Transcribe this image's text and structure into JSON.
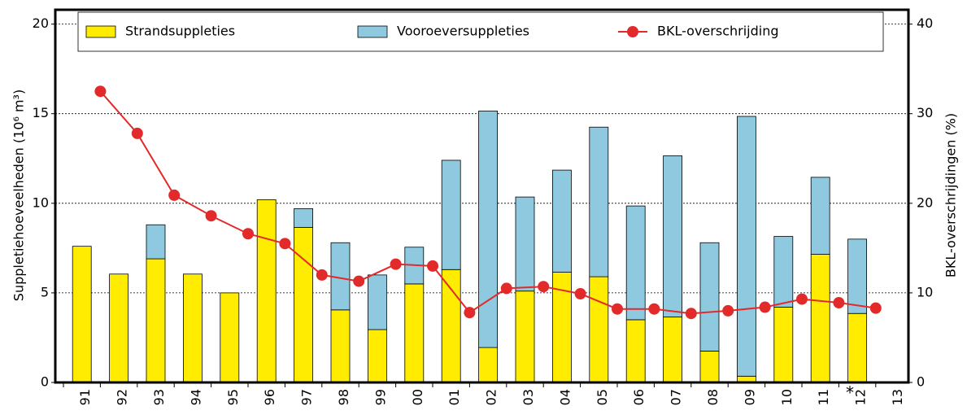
{
  "chart_data": {
    "type": "bar",
    "categories": [
      "91",
      "92",
      "93",
      "94",
      "95",
      "96",
      "97",
      "98",
      "99",
      "00",
      "01",
      "02",
      "03",
      "04",
      "05",
      "06",
      "07",
      "08",
      "09",
      "10",
      "11",
      "12",
      "13"
    ],
    "series": [
      {
        "name": "Strandsuppleties",
        "color": "#ffec00",
        "values": [
          7.6,
          6.05,
          6.9,
          6.05,
          5.0,
          10.2,
          8.65,
          4.05,
          2.95,
          5.5,
          6.3,
          1.95,
          5.1,
          6.15,
          5.9,
          3.5,
          3.65,
          1.75,
          0.35,
          4.2,
          7.15,
          3.85,
          null
        ]
      },
      {
        "name": "Vooroeversuppleties",
        "color": "#8ec9e0",
        "values": [
          0,
          0,
          1.9,
          0,
          0,
          0,
          1.05,
          3.75,
          3.05,
          2.05,
          6.1,
          13.2,
          5.25,
          5.7,
          8.35,
          6.35,
          9.0,
          6.05,
          14.5,
          3.95,
          4.3,
          4.15,
          null
        ]
      },
      {
        "name": "BKL-overschrijding",
        "color": "#e32a2a",
        "type": "line",
        "axis": "y2",
        "values": [
          null,
          32.5,
          27.8,
          20.9,
          18.6,
          16.6,
          15.5,
          12.0,
          11.3,
          13.2,
          13.0,
          7.8,
          10.5,
          10.7,
          9.9,
          8.2,
          8.2,
          7.7,
          8.0,
          8.4,
          9.3,
          8.9,
          8.3
        ]
      }
    ],
    "ylabel": "Suppletiehoeveelheden (10⁶ m³)",
    "y2label": "BKL-overschrijdingen (%)",
    "annotation": "*",
    "ylim": [
      0,
      20.8
    ],
    "yticks": [
      0,
      5,
      10,
      15,
      20
    ],
    "y2lim": [
      0,
      41.6
    ],
    "y2ticks": [
      0,
      10,
      20,
      30,
      40
    ],
    "grid": true
  }
}
